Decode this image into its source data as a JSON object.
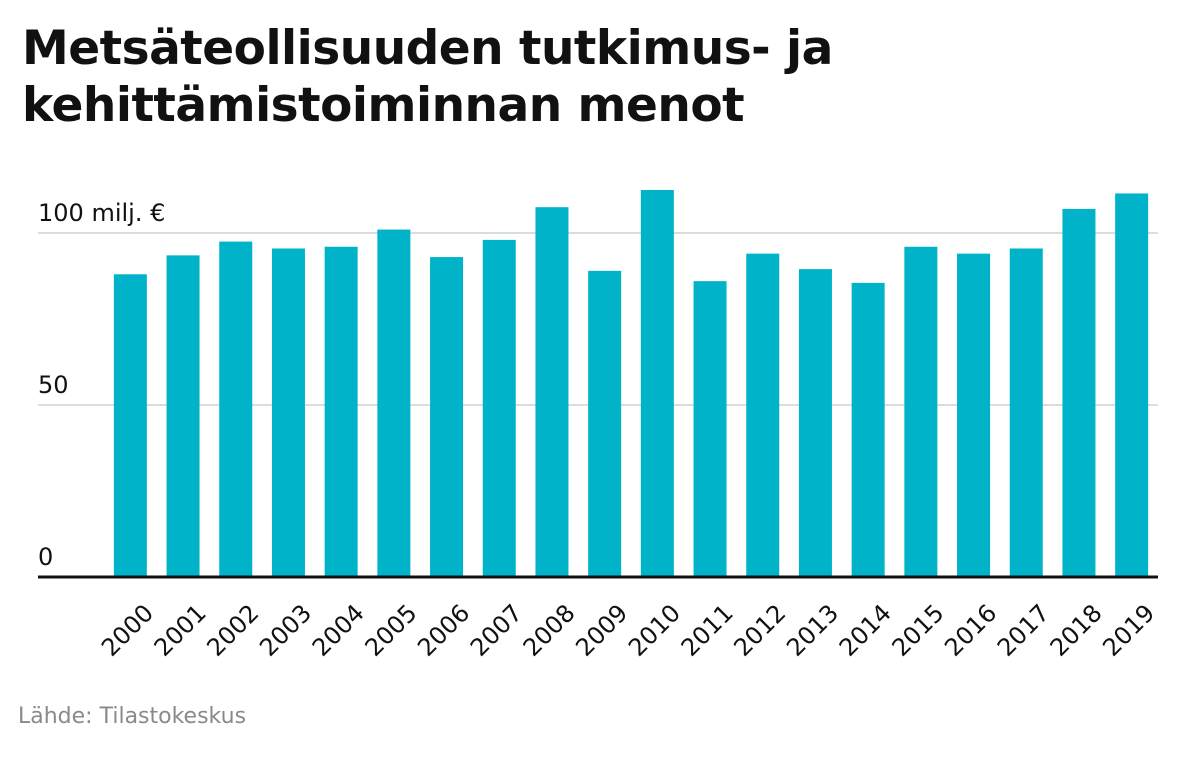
{
  "chart_data": {
    "type": "bar",
    "title": "Metsäteollisuuden tutkimus- ja kehittämistoiminnan menot",
    "ylabel": "",
    "xlabel": "",
    "ylim": [
      0,
      112
    ],
    "y_ticks": [
      0,
      50,
      100
    ],
    "y_tick_labels": [
      "0",
      "50",
      "100 milj. €"
    ],
    "categories": [
      "2000",
      "2001",
      "2002",
      "2003",
      "2004",
      "2005",
      "2006",
      "2007",
      "2008",
      "2009",
      "2010",
      "2011",
      "2012",
      "2013",
      "2014",
      "2015",
      "2016",
      "2017",
      "2018",
      "2019"
    ],
    "values": [
      88,
      93.5,
      97.5,
      95.5,
      96,
      101,
      93,
      98,
      107.5,
      89,
      112.5,
      86,
      94,
      89.5,
      85.5,
      96,
      94,
      95.5,
      107,
      111.5
    ],
    "grid": true,
    "legend": "none",
    "colors": {
      "bar": "#00b3c9",
      "grid": "#c8c8c8",
      "baseline": "#111111"
    }
  },
  "source": "Lähde: Tilastokeskus"
}
